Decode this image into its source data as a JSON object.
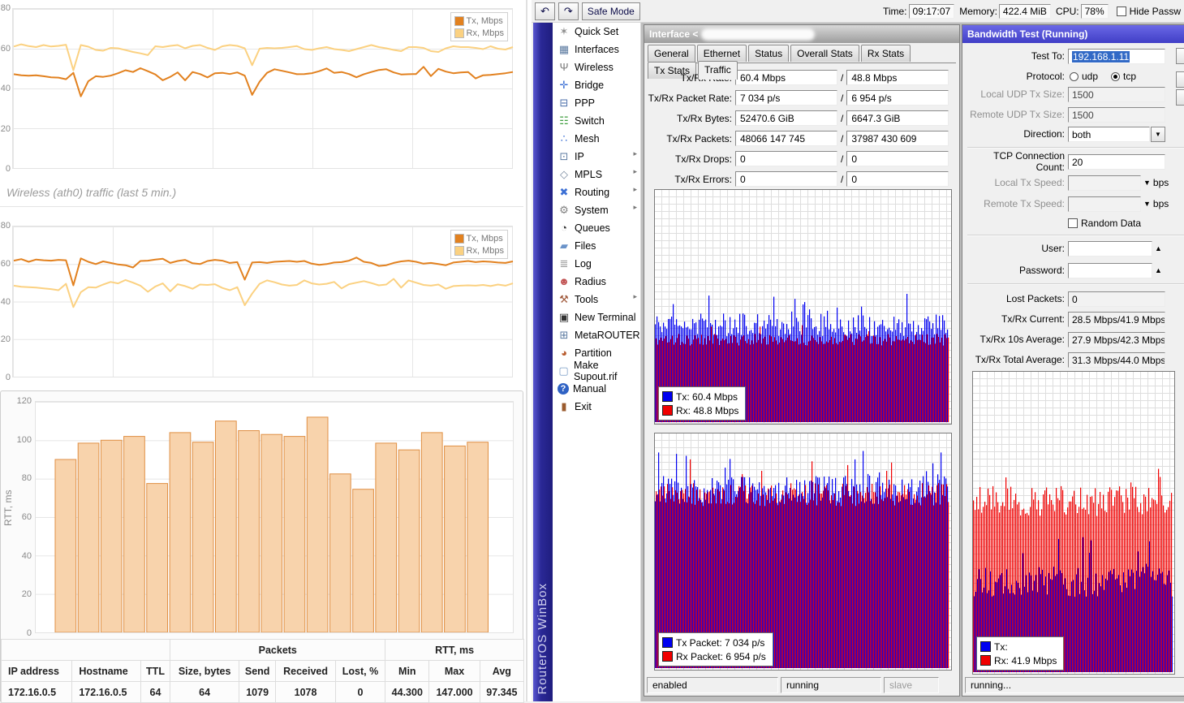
{
  "colors": {
    "tx_line": "#e2811f",
    "rx_line": "#fbd181",
    "bar_fill": "#f8d3ac",
    "bar_stroke": "#df8f44",
    "graph_blue": "#0000f0",
    "graph_red": "#f00000",
    "title_active": "#4543d4",
    "title_inactive": "#a8a8a8",
    "selection": "#3169c6"
  },
  "chart_data": [
    {
      "type": "line",
      "title": "",
      "xlabel": "",
      "ylabel": "",
      "ylim": [
        0,
        80
      ],
      "yticks": [
        80,
        60,
        40,
        20,
        0
      ],
      "grid": true,
      "legend_position": "top-right",
      "series": [
        {
          "name": "Tx, Mbps",
          "color": "#e2811f",
          "values": [
            47.5,
            47,
            46.8,
            47,
            46.5,
            46,
            45.8,
            45,
            48.2,
            36.5,
            44,
            46.5,
            46.2,
            46.8,
            48,
            49.5,
            48.6,
            50.5,
            49,
            47.4,
            44.5,
            46.2,
            48.4,
            44.5,
            48.6,
            47.6,
            45.9,
            48,
            48.2,
            47.6,
            48.4,
            46.8,
            37.2,
            43.8,
            48.2,
            50,
            49.2,
            48.4,
            47.5,
            47.6,
            48,
            49,
            50.4,
            48.2,
            48.6,
            47.6,
            46,
            47.5,
            48.6,
            49.6,
            50,
            48.4,
            47.4,
            47.5,
            47.6,
            51.2,
            46.6,
            50.2,
            48.8,
            48,
            48.4,
            48.6,
            45.4,
            47,
            47.2,
            47.6,
            48,
            48.6
          ]
        },
        {
          "name": "Rx, Mbps",
          "color": "#fbd181",
          "values": [
            61.3,
            62.4,
            61.5,
            61,
            62,
            61.3,
            61.6,
            62.2,
            49.5,
            62,
            61.2,
            59.6,
            59.2,
            60.6,
            60.4,
            59.5,
            58.6,
            57.9,
            57,
            61.4,
            61,
            61.6,
            62,
            60.4,
            61.6,
            62,
            60.6,
            59.6,
            61.4,
            62,
            61.6,
            60.4,
            52,
            60.2,
            60.6,
            60.4,
            60.6,
            61,
            61.5,
            60,
            59.6,
            60.4,
            61,
            60,
            59.6,
            59,
            60,
            61,
            62,
            61,
            60.4,
            59.6,
            59,
            61,
            61,
            60.6,
            59,
            58.6,
            60.4,
            61.4,
            61,
            61,
            60.6,
            60,
            61.4,
            60.2,
            59.8,
            61
          ]
        }
      ]
    },
    {
      "type": "line",
      "title": "Wireless (ath0) traffic (last 5 min.)",
      "xlabel": "",
      "ylabel": "",
      "ylim": [
        0,
        80
      ],
      "yticks": [
        80,
        60,
        40,
        20,
        0
      ],
      "grid": true,
      "legend_position": "top-right",
      "series": [
        {
          "name": "Tx, Mbps",
          "color": "#e2811f",
          "values": [
            62,
            62.8,
            61.4,
            62.6,
            62.2,
            62,
            62.4,
            62.2,
            49,
            63.2,
            61.4,
            60.2,
            61.6,
            60.8,
            60,
            59.6,
            58.4,
            61.8,
            62,
            62.6,
            63,
            60.8,
            61.8,
            62.4,
            60.6,
            60.2,
            61.8,
            62.4,
            62,
            60.8,
            61.2,
            52,
            61,
            61.2,
            60.8,
            61.4,
            61.6,
            61.8,
            61.4,
            61.8,
            60.4,
            59.8,
            60.2,
            61,
            61.2,
            62,
            63.6,
            61.4,
            60.8,
            59.2,
            59.6,
            60.8,
            61.6,
            62,
            61.4,
            60.4,
            60.8,
            60.2,
            59.6,
            61,
            61.4,
            61.8,
            61.2,
            61.6,
            61.4,
            61,
            60.8,
            61.6
          ]
        },
        {
          "name": "Rx, Mbps",
          "color": "#fbd181",
          "values": [
            48.8,
            48.2,
            48,
            47.8,
            47.4,
            47,
            46.4,
            49.8,
            37.5,
            45.4,
            48,
            47.8,
            49.4,
            50.8,
            50,
            51.8,
            50.4,
            48.8,
            45.6,
            48.4,
            50,
            45.8,
            49.6,
            48.6,
            47.2,
            49.4,
            49.2,
            49.6,
            47.6,
            46.4,
            48,
            38.5,
            44.6,
            49.8,
            51.6,
            50.6,
            49.4,
            48.8,
            49.2,
            51.6,
            50,
            49.4,
            49.8,
            50.8,
            47.4,
            49.6,
            50.4,
            51.2,
            50.2,
            49,
            49.4,
            52.4,
            47.8,
            51.6,
            50.4,
            49.2,
            48.8,
            49.4,
            47.2,
            48.6,
            48.8,
            49,
            48.8,
            49.2,
            48.6,
            49.4,
            48.8,
            50
          ]
        }
      ]
    },
    {
      "type": "bar",
      "title": "",
      "xlabel": "",
      "ylabel": "RTT, ms",
      "ylim": [
        0,
        120
      ],
      "yticks": [
        120,
        100,
        80,
        60,
        40,
        20,
        0
      ],
      "grid": true,
      "values": [
        90,
        98.5,
        100,
        102,
        77.5,
        104,
        99,
        110,
        105,
        103,
        102,
        112,
        82.5,
        74.5,
        98.5,
        95,
        104,
        97,
        99
      ]
    }
  ],
  "left_panel": {
    "caption": "Wireless (ath0) traffic (last 5 min.)",
    "table": {
      "group_headers": [
        "",
        "Packets",
        "RTT, ms"
      ],
      "group_spans": [
        3,
        4,
        3
      ],
      "columns": [
        "IP address",
        "Hostname",
        "TTL",
        "Size, bytes",
        "Send",
        "Received",
        "Lost, %",
        "Min",
        "Max",
        "Avg"
      ],
      "rows": [
        [
          "172.16.0.5",
          "172.16.0.5",
          "64",
          "64",
          "1079",
          "1078",
          "0",
          "44.300",
          "147.000",
          "97.345"
        ]
      ]
    }
  },
  "winbox": {
    "brand_vertical": "RouterOS WinBox",
    "toolbar": {
      "undo_icon": "↶",
      "redo_icon": "↷",
      "safe_mode_label": "Safe Mode",
      "time_label": "Time:",
      "time_value": "09:17:07",
      "memory_label": "Memory:",
      "memory_value": "422.4 MiB",
      "cpu_label": "CPU:",
      "cpu_value": "78%",
      "hide_passwords_label": "Hide Passw"
    },
    "sidebar": {
      "items": [
        {
          "label": "Quick Set",
          "icon": "quick-set-icon",
          "char": "✶",
          "color": "#8f8f8f",
          "arrow": false
        },
        {
          "label": "Interfaces",
          "icon": "interfaces-icon",
          "char": "▦",
          "color": "#5b7aa0",
          "arrow": false
        },
        {
          "label": "Wireless",
          "icon": "wireless-icon",
          "char": "Ψ",
          "color": "#777777",
          "arrow": false
        },
        {
          "label": "Bridge",
          "icon": "bridge-icon",
          "char": "✛",
          "color": "#3b6fd4",
          "arrow": false
        },
        {
          "label": "PPP",
          "icon": "ppp-icon",
          "char": "⊟",
          "color": "#4a6ea9",
          "arrow": false
        },
        {
          "label": "Switch",
          "icon": "switch-icon",
          "char": "☷",
          "color": "#3f9e3f",
          "arrow": false
        },
        {
          "label": "Mesh",
          "icon": "mesh-icon",
          "char": "∴",
          "color": "#3b6fd4",
          "arrow": false
        },
        {
          "label": "IP",
          "icon": "ip-icon",
          "char": "⊡",
          "color": "#5b7aa0",
          "arrow": true
        },
        {
          "label": "MPLS",
          "icon": "mpls-icon",
          "char": "◇",
          "color": "#7a8aa0",
          "arrow": true
        },
        {
          "label": "Routing",
          "icon": "routing-icon",
          "char": "✖",
          "color": "#3b6fd4",
          "arrow": true
        },
        {
          "label": "System",
          "icon": "system-icon",
          "char": "⚙",
          "color": "#808080",
          "arrow": true
        },
        {
          "label": "Queues",
          "icon": "queues-icon",
          "char": "◔",
          "color": "#333333",
          "arrow": false
        },
        {
          "label": "Files",
          "icon": "files-icon",
          "char": "▰",
          "color": "#6a93c9",
          "arrow": false
        },
        {
          "label": "Log",
          "icon": "log-icon",
          "char": "≣",
          "color": "#9a9a9a",
          "arrow": false
        },
        {
          "label": "Radius",
          "icon": "radius-icon",
          "char": "☻",
          "color": "#c05050",
          "arrow": false
        },
        {
          "label": "Tools",
          "icon": "tools-icon",
          "char": "⚒",
          "color": "#a05a3c",
          "arrow": true
        },
        {
          "label": "New Terminal",
          "icon": "terminal-icon",
          "char": "▣",
          "color": "#333333",
          "arrow": false
        },
        {
          "label": "MetaROUTER",
          "icon": "metarouter-icon",
          "char": "⊞",
          "color": "#5b7aa0",
          "arrow": false
        },
        {
          "label": "Partition",
          "icon": "partition-icon",
          "char": "◕",
          "color": "#b85c2e",
          "arrow": false
        },
        {
          "label": "Make Supout.rif",
          "icon": "supout-icon",
          "char": "▢",
          "color": "#7a9cc6",
          "arrow": false
        },
        {
          "label": "Manual",
          "icon": "manual-icon",
          "char": "?",
          "color": "#ffffff",
          "bg": "#2f62c4",
          "round": true,
          "arrow": false
        },
        {
          "label": "Exit",
          "icon": "exit-icon",
          "char": "▮",
          "color": "#9a5b2e",
          "arrow": false
        }
      ]
    },
    "interface_window": {
      "title_prefix": "Interface <",
      "tabs": [
        "General",
        "Ethernet",
        "Status",
        "Overall Stats",
        "Rx Stats",
        "Tx Stats",
        "Traffic"
      ],
      "active_tab": "Traffic",
      "separator": "/",
      "fields": [
        {
          "label": "Tx/Rx Rate:",
          "tx": "60.4 Mbps",
          "rx": "48.8 Mbps"
        },
        {
          "label": "Tx/Rx Packet Rate:",
          "tx": "7 034 p/s",
          "rx": "6 954 p/s"
        },
        {
          "label": "Tx/Rx Bytes:",
          "tx": "52470.6 GiB",
          "rx": "6647.3 GiB"
        },
        {
          "label": "Tx/Rx Packets:",
          "tx": "48066 147 745",
          "rx": "37987 430 609"
        },
        {
          "label": "Tx/Rx Drops:",
          "tx": "0",
          "rx": "0"
        },
        {
          "label": "Tx/Rx Errors:",
          "tx": "0",
          "rx": "0"
        }
      ],
      "graph1_legend": {
        "tx_label": "Tx:",
        "tx_value": "60.4 Mbps",
        "rx_label": "Rx:",
        "rx_value": "48.8 Mbps"
      },
      "graph2_legend": {
        "tx_label": "Tx Packet:",
        "tx_value": "7 034 p/s",
        "rx_label": "Rx Packet:",
        "rx_value": "6 954 p/s"
      },
      "status": [
        "enabled",
        "running",
        "slave"
      ]
    },
    "bwtest_window": {
      "title": "Bandwidth Test (Running)",
      "test_to_label": "Test To:",
      "test_to_value": "192.168.1.11",
      "protocol_label": "Protocol:",
      "protocol_options": [
        "udp",
        "tcp"
      ],
      "protocol_selected": "tcp",
      "local_udp_label": "Local UDP Tx Size:",
      "local_udp_value": "1500",
      "remote_udp_label": "Remote UDP Tx Size:",
      "remote_udp_value": "1500",
      "direction_label": "Direction:",
      "direction_value": "both",
      "tcp_count_label": "TCP Connection Count:",
      "tcp_count_value": "20",
      "local_tx_label": "Local Tx Speed:",
      "local_tx_unit": "bps",
      "remote_tx_label": "Remote Tx Speed:",
      "remote_tx_unit": "bps",
      "random_data_label": "Random Data",
      "user_label": "User:",
      "password_label": "Password:",
      "lost_label": "Lost Packets:",
      "lost_value": "0",
      "current_label": "Tx/Rx Current:",
      "current_value": "28.5 Mbps/41.9 Mbps",
      "avg10_label": "Tx/Rx 10s Average:",
      "avg10_value": "27.9 Mbps/42.3 Mbps",
      "avgtotal_label": "Tx/Rx Total Average:",
      "avgtotal_value": "31.3 Mbps/44.0 Mbps",
      "graph_legend": {
        "tx_label": "Tx:",
        "tx_value": "",
        "rx_label": "Rx:",
        "rx_value": "41.9 Mbps"
      },
      "status": "running..."
    },
    "dense_graphs": {
      "iface_traffic": {
        "seed": 11,
        "a": {
          "base": 0.42,
          "jit": 0.05,
          "spike": 0.1,
          "spike_p": 0.06,
          "color": "#0000f0"
        },
        "b": {
          "base": 0.355,
          "jit": 0.025,
          "spike": 0.05,
          "spike_p": 0.03,
          "color": "#f00000"
        }
      },
      "iface_packets": {
        "seed": 23,
        "a": {
          "base": 0.76,
          "jit": 0.06,
          "spike": 0.12,
          "spike_p": 0.05,
          "color": "#0000f0"
        },
        "b": {
          "base": 0.74,
          "jit": 0.05,
          "spike": 0.1,
          "spike_p": 0.05,
          "color": "#f00000"
        }
      },
      "bwtest": {
        "seed": 37,
        "a": {
          "base": 0.57,
          "jit": 0.05,
          "spike": 0.09,
          "spike_p": 0.07,
          "color": "#f00000"
        },
        "b": {
          "base": 0.3,
          "jit": 0.05,
          "spike": 0.1,
          "spike_p": 0.08,
          "color": "#0000f0"
        }
      }
    }
  }
}
